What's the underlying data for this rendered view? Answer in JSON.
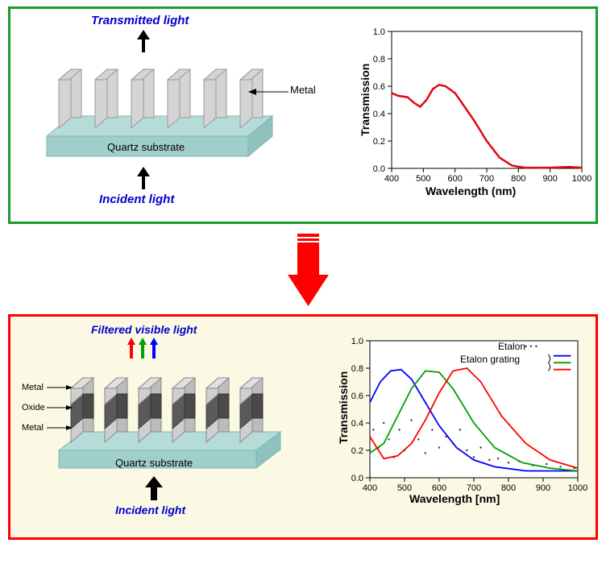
{
  "top_panel": {
    "border_color": "#169c2f",
    "labels": {
      "transmitted": "Transmitted light",
      "incident": "Incident light",
      "metal": "Metal",
      "substrate": "Quartz substrate"
    },
    "label_color": "#0000cc",
    "substrate_color": "#b6dcda",
    "grating_color": "#d4d4d4",
    "chart": {
      "type": "line",
      "xlabel": "Wavelength (nm)",
      "ylabel": "Transmission",
      "xlim": [
        400,
        1000
      ],
      "ylim": [
        0.0,
        1.0
      ],
      "xticks": [
        400,
        500,
        600,
        700,
        800,
        900,
        1000
      ],
      "yticks": [
        0.0,
        0.2,
        0.4,
        0.6,
        0.8,
        1.0
      ],
      "line_color": "#e30613",
      "line_width": 2.5,
      "series": {
        "x": [
          400,
          420,
          450,
          470,
          490,
          510,
          530,
          550,
          570,
          600,
          630,
          660,
          700,
          740,
          780,
          820,
          900,
          960,
          1000
        ],
        "y": [
          0.55,
          0.53,
          0.52,
          0.48,
          0.45,
          0.5,
          0.58,
          0.61,
          0.6,
          0.55,
          0.45,
          0.35,
          0.2,
          0.08,
          0.02,
          0.005,
          0.005,
          0.01,
          0.005
        ]
      }
    }
  },
  "transition_arrow_color": "#ff0000",
  "bottom_panel": {
    "border_color": "#ff0000",
    "bg_color": "#fbf9e3",
    "labels": {
      "filtered": "Filtered visible light",
      "incident": "Incident light",
      "metal": "Metal",
      "oxide": "Oxide",
      "substrate": "Quartz substrate"
    },
    "label_color": "#0000cc",
    "substrate_color": "#b6dcda",
    "metal_layer_color": "#cfcfcf",
    "oxide_layer_color": "#5a5a5a",
    "rgb_arrows": [
      "#ff0000",
      "#00a000",
      "#0000ff"
    ],
    "chart": {
      "type": "line",
      "xlabel": "Wavelength [nm]",
      "ylabel": "Transmission",
      "xlim": [
        400,
        1000
      ],
      "ylim": [
        0.0,
        1.0
      ],
      "xticks": [
        400,
        500,
        600,
        700,
        800,
        900,
        1000
      ],
      "yticks": [
        0.0,
        0.2,
        0.4,
        0.6,
        0.8,
        1.0
      ],
      "legend": {
        "etalon": "Etalon",
        "etalon_grating": "Etalon grating"
      },
      "series_colors": {
        "blue": "#0000ff",
        "green": "#00a000",
        "red": "#ff0000",
        "dots": "#333333"
      },
      "blue": {
        "x": [
          400,
          430,
          460,
          490,
          520,
          560,
          600,
          650,
          700,
          760,
          850,
          950,
          1000
        ],
        "y": [
          0.55,
          0.7,
          0.78,
          0.79,
          0.72,
          0.55,
          0.38,
          0.22,
          0.13,
          0.08,
          0.05,
          0.05,
          0.05
        ]
      },
      "green": {
        "x": [
          400,
          440,
          480,
          520,
          560,
          600,
          640,
          700,
          760,
          840,
          920,
          1000
        ],
        "y": [
          0.18,
          0.25,
          0.45,
          0.65,
          0.78,
          0.77,
          0.65,
          0.4,
          0.22,
          0.11,
          0.07,
          0.05
        ]
      },
      "red": {
        "x": [
          400,
          440,
          480,
          520,
          560,
          600,
          640,
          680,
          720,
          780,
          850,
          920,
          1000
        ],
        "y": [
          0.3,
          0.14,
          0.16,
          0.25,
          0.42,
          0.62,
          0.78,
          0.8,
          0.7,
          0.45,
          0.25,
          0.13,
          0.07
        ]
      },
      "dots": {
        "x": [
          400,
          410,
          425,
          440,
          455,
          470,
          485,
          500,
          520,
          540,
          560,
          580,
          600,
          620,
          640,
          660,
          680,
          700,
          720,
          745,
          770,
          800,
          830,
          870,
          910,
          950,
          990
        ],
        "y": [
          0.2,
          0.35,
          0.22,
          0.4,
          0.28,
          0.15,
          0.35,
          0.2,
          0.42,
          0.28,
          0.18,
          0.35,
          0.22,
          0.3,
          0.25,
          0.35,
          0.2,
          0.15,
          0.22,
          0.13,
          0.14,
          0.11,
          0.12,
          0.09,
          0.1,
          0.08,
          0.07
        ]
      }
    }
  }
}
